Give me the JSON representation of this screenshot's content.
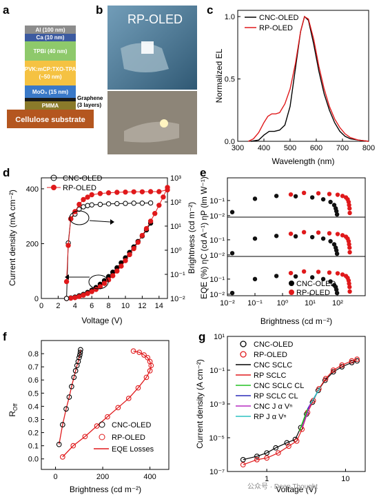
{
  "figure": {
    "panel_labels": [
      "a",
      "b",
      "c",
      "d",
      "e",
      "f",
      "g"
    ],
    "watermark": "公众号 · Deep Thought"
  },
  "panel_a": {
    "layers": [
      {
        "label": "Al (100 nm)",
        "color": "#8c8c8c"
      },
      {
        "label": "Ca (10 nm)",
        "color": "#3c5aa0"
      },
      {
        "label": "TPBi (40 nm)",
        "color": "#8ec96b"
      },
      {
        "label": "PVK:mCP:TXO-TPA",
        "label2": "(~50 nm)",
        "color": "#f5c242"
      },
      {
        "label": "MoO₃ (15 nm)",
        "color": "#3a79c8"
      },
      {
        "label": "",
        "color": "#1a1a1a"
      },
      {
        "label": "PMMA",
        "color": "#8a7a2a"
      },
      {
        "label": "Cellulose substrate",
        "color": "#b4561f"
      }
    ],
    "graphene_label": "Graphene",
    "graphene_label2": "(3 layers)"
  },
  "panel_b": {
    "title": "RP-OLED"
  },
  "panel_c": {
    "chart_data": {
      "type": "line",
      "xlabel": "Wavelength (nm)",
      "ylabel": "Normalized EL",
      "xlim": [
        300,
        800
      ],
      "ylim": [
        0,
        1.05
      ],
      "xticks": [
        "300",
        "400",
        "500",
        "600",
        "700",
        "800"
      ],
      "yticks": [
        "0.0",
        "0.5",
        "1.0"
      ],
      "series": [
        {
          "name": "CNC-OLED",
          "color": "#000000",
          "x": [
            350,
            380,
            400,
            420,
            440,
            460,
            480,
            500,
            520,
            540,
            555,
            570,
            590,
            610,
            630,
            650,
            670,
            690,
            710,
            730,
            760,
            800
          ],
          "y": [
            0,
            0.01,
            0.05,
            0.08,
            0.08,
            0.09,
            0.13,
            0.28,
            0.58,
            0.88,
            1.0,
            0.97,
            0.78,
            0.56,
            0.38,
            0.25,
            0.15,
            0.08,
            0.04,
            0.02,
            0.01,
            0
          ]
        },
        {
          "name": "RP-OLED",
          "color": "#e0191b",
          "x": [
            340,
            360,
            380,
            400,
            415,
            430,
            445,
            460,
            480,
            500,
            520,
            540,
            555,
            570,
            590,
            610,
            630,
            650,
            670,
            690,
            710,
            730,
            760,
            800
          ],
          "y": [
            0,
            0.02,
            0.07,
            0.15,
            0.2,
            0.22,
            0.22,
            0.23,
            0.3,
            0.42,
            0.62,
            0.88,
            1.0,
            0.98,
            0.82,
            0.6,
            0.42,
            0.28,
            0.18,
            0.11,
            0.06,
            0.03,
            0.01,
            0
          ]
        }
      ]
    }
  },
  "panel_d": {
    "chart_data": {
      "type": "scatter",
      "xlabel": "Voltage (V)",
      "ylabel": "Current density (mA cm⁻²)",
      "ylabel_right": "Brightness (cd m⁻²)",
      "xlim": [
        0,
        15
      ],
      "ylim": [
        0,
        440
      ],
      "ylim_right_log": [
        -2,
        3
      ],
      "xticks": [
        "0",
        "2",
        "4",
        "6",
        "8",
        "10",
        "12",
        "14"
      ],
      "yticks": [
        "0",
        "200",
        "400"
      ],
      "yticks_right": [
        "10⁻²",
        "10⁻¹",
        "10⁰",
        "10¹",
        "10²",
        "10³"
      ],
      "series": [
        {
          "name": "CNC-OLED",
          "kind": "current",
          "x": [
            3,
            3.5,
            4,
            4.5,
            5,
            5.5,
            6,
            6.5,
            7,
            7.5,
            8,
            8.5,
            9,
            9.5,
            10,
            10.5,
            11,
            11.5,
            12,
            12.5,
            13
          ],
          "y": [
            0,
            2,
            5,
            10,
            15,
            22,
            30,
            40,
            52,
            65,
            80,
            96,
            112,
            130,
            148,
            168,
            188,
            208,
            228,
            250,
            275
          ]
        },
        {
          "name": "RP-OLED",
          "kind": "current",
          "x": [
            3,
            3.5,
            4,
            4.5,
            5,
            5.5,
            6,
            6.5,
            7,
            7.5,
            8,
            8.5,
            9,
            9.5,
            10,
            10.5,
            11,
            11.5,
            12,
            12.5,
            13,
            13.5,
            14,
            14.5,
            15
          ],
          "y": [
            0,
            1,
            3,
            7,
            12,
            18,
            25,
            33,
            43,
            55,
            68,
            83,
            100,
            118,
            138,
            160,
            182,
            205,
            230,
            255,
            282,
            310,
            340,
            370,
            405
          ]
        },
        {
          "name": "CNC-OLED",
          "kind": "brightness",
          "x": [
            3,
            3.2,
            3.5,
            4,
            4.5,
            5,
            5.5,
            6,
            7,
            8,
            9,
            10,
            11,
            12,
            13
          ],
          "y": [
            -2,
            0.3,
            1.3,
            1.5,
            1.7,
            1.8,
            1.85,
            1.88,
            1.9,
            1.92,
            1.93,
            1.94,
            1.95,
            1.95,
            1.96
          ]
        },
        {
          "name": "RP-OLED",
          "kind": "brightness",
          "x": [
            3,
            3.2,
            3.5,
            4,
            4.5,
            5,
            5.5,
            6,
            7,
            8,
            9,
            10,
            11,
            12,
            13,
            14,
            15
          ],
          "y": [
            -1.3,
            0.2,
            1.3,
            1.6,
            1.9,
            2.1,
            2.2,
            2.3,
            2.35,
            2.38,
            2.4,
            2.41,
            2.42,
            2.42,
            2.43,
            2.43,
            2.5
          ]
        }
      ],
      "legend": [
        "CNC-OLED",
        "RP-OLED"
      ]
    }
  },
  "panel_e": {
    "chart_data": {
      "type": "scatter",
      "xlabel": "Brightness (cd m⁻²)",
      "ylabel": "EQE (%)  ηC (cd A⁻¹)  ηP (lm W⁻¹)",
      "xlim_log": [
        -2,
        3
      ],
      "xticks": [
        "10⁻²",
        "10⁻¹",
        "10⁰",
        "10¹",
        "10²"
      ],
      "yticks": [
        "10⁻²",
        "10⁻¹"
      ],
      "subplots": [
        {
          "series": [
            {
              "name": "CNC-OLED",
              "x": [
                0.015,
                0.1,
                0.6,
                3,
                12,
                30,
                55,
                75,
                85,
                90,
                95
              ],
              "y": [
                0.017,
                0.13,
                0.2,
                0.19,
                0.16,
                0.12,
                0.08,
                0.05,
                0.03,
                0.02,
                0.012
              ]
            },
            {
              "name": "RP-OLED",
              "x": [
                2,
                6,
                20,
                50,
                100,
                150,
                200,
                230,
                250,
                260,
                270,
                275
              ],
              "y": [
                0.25,
                0.32,
                0.3,
                0.27,
                0.24,
                0.2,
                0.16,
                0.12,
                0.08,
                0.05,
                0.03,
                0.015
              ]
            }
          ]
        },
        {
          "series": [
            {
              "name": "CNC-OLED",
              "x": [
                0.015,
                0.1,
                0.6,
                3,
                12,
                30,
                55,
                75,
                85,
                90,
                95
              ],
              "y": [
                0.013,
                0.12,
                0.18,
                0.17,
                0.15,
                0.12,
                0.08,
                0.05,
                0.03,
                0.02,
                0.012
              ]
            },
            {
              "name": "RP-OLED",
              "x": [
                2,
                6,
                20,
                50,
                100,
                150,
                200,
                230,
                250,
                260,
                270,
                275
              ],
              "y": [
                0.25,
                0.32,
                0.3,
                0.27,
                0.24,
                0.2,
                0.16,
                0.12,
                0.08,
                0.05,
                0.03,
                0.015
              ]
            }
          ]
        },
        {
          "series": [
            {
              "name": "CNC-OLED",
              "x": [
                0.015,
                0.1,
                0.6,
                3,
                12,
                30,
                55,
                75,
                85,
                90,
                95
              ],
              "y": [
                0.012,
                0.1,
                0.16,
                0.15,
                0.13,
                0.1,
                0.07,
                0.04,
                0.03,
                0.02,
                0.012
              ]
            },
            {
              "name": "RP-OLED",
              "x": [
                2,
                6,
                20,
                50,
                100,
                150,
                200,
                230,
                250,
                260,
                270,
                275
              ],
              "y": [
                0.25,
                0.32,
                0.3,
                0.27,
                0.24,
                0.2,
                0.16,
                0.12,
                0.08,
                0.05,
                0.03,
                0.015
              ]
            }
          ]
        }
      ],
      "legend": [
        "CNC-OLED",
        "RP-OLED"
      ]
    }
  },
  "panel_f": {
    "chart_data": {
      "type": "scatter",
      "xlabel": "Brightness (cd m⁻²)",
      "ylabel": "R_Off",
      "xlim": [
        -60,
        480
      ],
      "ylim": [
        -0.08,
        0.9
      ],
      "xticks": [
        "0",
        "200",
        "400"
      ],
      "yticks": [
        "0.0",
        "0.1",
        "0.2",
        "0.3",
        "0.4",
        "0.5",
        "0.6",
        "0.7",
        "0.8"
      ],
      "series": [
        {
          "name": "CNC-OLED",
          "x": [
            15,
            30,
            45,
            58,
            68,
            78,
            85,
            91,
            96,
            100,
            103,
            105,
            106
          ],
          "y": [
            0.11,
            0.26,
            0.38,
            0.47,
            0.55,
            0.62,
            0.67,
            0.71,
            0.74,
            0.77,
            0.79,
            0.81,
            0.83
          ]
        },
        {
          "name": "RP-OLED",
          "x": [
            30,
            75,
            125,
            175,
            220,
            265,
            310,
            350,
            385,
            400,
            405,
            400,
            390,
            375,
            355,
            330
          ],
          "y": [
            0.015,
            0.1,
            0.17,
            0.25,
            0.32,
            0.39,
            0.46,
            0.54,
            0.62,
            0.67,
            0.71,
            0.74,
            0.77,
            0.79,
            0.81,
            0.82
          ]
        }
      ],
      "legend": [
        "CNC-OLED",
        "RP-OLED",
        "EQE Losses"
      ]
    }
  },
  "panel_g": {
    "chart_data": {
      "type": "scatter",
      "xlabel": "Voltage (V)",
      "ylabel": "Current density (A cm⁻²)",
      "xlim_log": [
        -0.5,
        1.25
      ],
      "ylim_log": [
        -7,
        1
      ],
      "xticks": [
        "1",
        "10"
      ],
      "yticks": [
        "10⁻⁷",
        "10⁻⁵",
        "10⁻³",
        "10⁻¹",
        "10¹"
      ],
      "series": [
        {
          "name": "CNC-OLED",
          "x": [
            0.5,
            0.75,
            1,
            1.3,
            1.8,
            2.3,
            2.7,
            3.2,
            3.8,
            4.5,
            5.5,
            7,
            9,
            12,
            14
          ],
          "y": [
            -6.3,
            -6.1,
            -5.9,
            -5.6,
            -5.3,
            -5.1,
            -4.4,
            -3.6,
            -2.9,
            -2.2,
            -1.6,
            -1.1,
            -0.8,
            -0.55,
            -0.45
          ]
        },
        {
          "name": "RP-OLED",
          "x": [
            0.5,
            0.75,
            1,
            1.4,
            1.9,
            2.4,
            2.8,
            3.3,
            3.9,
            4.6,
            5.6,
            7,
            9,
            12,
            14
          ],
          "y": [
            -6.6,
            -6.3,
            -6.2,
            -5.9,
            -5.5,
            -5.2,
            -4.5,
            -3.5,
            -2.8,
            -2.1,
            -1.5,
            -1.0,
            -0.7,
            -0.45,
            -0.35
          ]
        }
      ],
      "legend": [
        "CNC-OLED",
        "RP-OLED",
        "CNC SCLC",
        "RP SCLC",
        "CNC SCLC CL",
        "RP SCLC CL",
        "CNC J α Vⁿ",
        "RP J α Vⁿ"
      ],
      "legend_colors": [
        "#000000",
        "#e0191b",
        "#000000",
        "#e0191b",
        "#22c022",
        "#2a2ab8",
        "#b52ac0",
        "#2ac0c0"
      ]
    }
  }
}
